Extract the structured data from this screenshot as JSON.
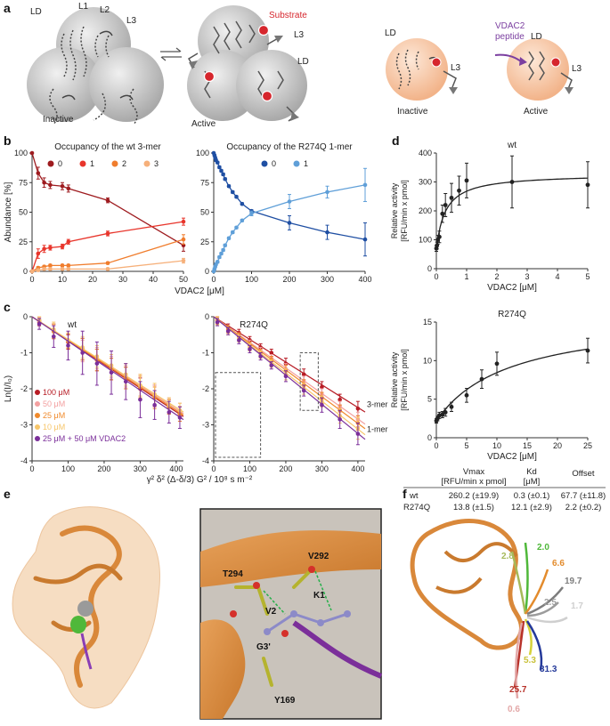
{
  "panel_letters": {
    "a": "a",
    "b": "b",
    "c": "c",
    "d": "d",
    "e": "e",
    "f": "f"
  },
  "panel_a": {
    "labels_inactive": {
      "LD": "LD",
      "L1": "L1",
      "L2": "L2",
      "L3": "L3",
      "state": "Inactive"
    },
    "labels_active": {
      "substrate": "Substrate",
      "L3": "L3",
      "LD": "LD",
      "state": "Active"
    },
    "labels_right": {
      "LD_1": "LD",
      "L3_1": "L3",
      "inactive": "Inactive",
      "peptide": "VDAC2\npeptide",
      "peptide_line1": "VDAC2",
      "peptide_line2": "peptide",
      "LD_2": "LD",
      "L3_2": "L3",
      "active": "Active"
    },
    "colors": {
      "sphere": "#c8c8c8",
      "sphere_orange": "#f6c9a9",
      "substrate": "#d6262d",
      "peptide": "#7b3fa0"
    }
  },
  "panel_e": {
    "residues": {
      "v292": "V292",
      "t294": "T294",
      "k1": "K1",
      "v2": "V2",
      "g3": "G3'",
      "y169": "Y169"
    }
  },
  "panel_f": {
    "labels": [
      "2.0",
      "2.8",
      "6.6",
      "19.7",
      "2.5",
      "1.7",
      "5.3",
      "31.3",
      "25.7",
      "0.6"
    ]
  },
  "table_d": {
    "headers": [
      "Vmax",
      "[RFU/min x pmol]",
      "Kd",
      "[μM]",
      "Offset"
    ],
    "rows": [
      [
        "wt",
        "260.2 (±19.9)",
        "0.3 (±0.1)",
        "67.7 (±11.8)"
      ],
      [
        "R274Q",
        "13.8 (±1.5)",
        "12.1 (±2.9)",
        "2.2 (±0.2)"
      ]
    ]
  },
  "chart_data": [
    {
      "id": "b-left",
      "type": "line",
      "title": "Occupancy of the wt 3-mer",
      "xlabel": "VDAC2 [μM]",
      "ylabel": "Abundance [%]",
      "xlim": [
        0,
        50
      ],
      "ylim": [
        0,
        100
      ],
      "xticks": [
        0,
        10,
        20,
        30,
        40,
        50
      ],
      "yticks": [
        0,
        25,
        50,
        75,
        100
      ],
      "x": [
        0,
        2,
        4,
        6,
        10,
        12,
        25,
        50
      ],
      "legend": [
        "0",
        "1",
        "2",
        "3"
      ],
      "series": [
        {
          "name": "0",
          "color": "#9e1b1f",
          "values": [
            100,
            83,
            75,
            73,
            72,
            70,
            60,
            22
          ],
          "err": [
            0,
            5,
            4,
            3,
            3,
            3,
            2,
            5
          ]
        },
        {
          "name": "1",
          "color": "#e8352b",
          "values": [
            0,
            15,
            19,
            20,
            21,
            25,
            32,
            42
          ],
          "err": [
            0,
            4,
            3,
            2,
            2,
            2,
            2,
            3
          ]
        },
        {
          "name": "2",
          "color": "#f07d2d",
          "values": [
            0,
            3,
            4,
            5,
            5,
            5,
            7,
            27
          ],
          "err": [
            0,
            1,
            1,
            1,
            1,
            1,
            1,
            4
          ]
        },
        {
          "name": "3",
          "color": "#f6b07a",
          "values": [
            0,
            1,
            2,
            2,
            2,
            2,
            2,
            9
          ],
          "err": [
            0,
            1,
            1,
            1,
            1,
            1,
            1,
            2
          ]
        }
      ]
    },
    {
      "id": "b-right",
      "type": "line",
      "title": "Occupancy of the R274Q 1-mer",
      "xlabel": "",
      "ylabel": "",
      "xlim": [
        0,
        400
      ],
      "ylim": [
        0,
        100
      ],
      "xticks": [
        0,
        100,
        200,
        300,
        400
      ],
      "yticks": [
        0,
        25,
        50,
        75,
        100
      ],
      "x": [
        0,
        2,
        4,
        6,
        10,
        15,
        20,
        25,
        30,
        40,
        50,
        60,
        75,
        100,
        200,
        300,
        400
      ],
      "legend": [
        "0",
        "1"
      ],
      "series": [
        {
          "name": "0",
          "color": "#1f4fa3",
          "values": [
            100,
            98,
            96,
            94,
            92,
            88,
            85,
            82,
            78,
            72,
            67,
            63,
            57,
            51,
            41,
            33,
            27
          ],
          "err": [
            0,
            1,
            1,
            1,
            1,
            1,
            1,
            1,
            1,
            1,
            1,
            1,
            1,
            1,
            6,
            6,
            14
          ]
        },
        {
          "name": "1",
          "color": "#5f9fd8",
          "values": [
            0,
            2,
            4,
            6,
            8,
            12,
            15,
            18,
            22,
            28,
            33,
            37,
            43,
            49,
            59,
            67,
            73
          ],
          "err": [
            0,
            1,
            1,
            1,
            1,
            1,
            1,
            1,
            1,
            1,
            1,
            1,
            1,
            2,
            6,
            5,
            14
          ]
        }
      ]
    },
    {
      "id": "c-left",
      "type": "line",
      "title": "wt",
      "xlabel": "",
      "ylabel": "Ln(I/I₀)",
      "xlim": [
        0,
        420
      ],
      "ylim": [
        -4,
        0
      ],
      "xticks": [
        0,
        100,
        200,
        300,
        400
      ],
      "yticks": [
        0,
        -1,
        -2,
        -3,
        -4
      ],
      "legend": [
        "100 μM",
        "50 μM",
        "25 μM",
        "10 μM",
        "25 μM + 50 μM VDAC2"
      ],
      "series": [
        {
          "name": "100 μM",
          "color": "#b71c25",
          "slope": -0.0066,
          "x": [
            20,
            60,
            100,
            140,
            180,
            220,
            260,
            300,
            340,
            380,
            410
          ],
          "y": [
            -0.15,
            -0.4,
            -0.7,
            -0.9,
            -1.2,
            -1.45,
            -1.7,
            -2.0,
            -2.2,
            -2.5,
            -2.7
          ],
          "err": [
            0.1,
            0.2,
            0.2,
            0.3,
            0.3,
            0.3,
            0.3,
            0.3,
            0.3,
            0.2,
            0.2
          ]
        },
        {
          "name": "50 μM",
          "color": "#f3a0a0",
          "slope": -0.0064,
          "x": [
            20,
            60,
            100,
            140,
            180,
            220,
            260,
            300,
            340,
            380,
            410
          ],
          "y": [
            -0.12,
            -0.42,
            -0.65,
            -0.95,
            -1.15,
            -1.4,
            -1.65,
            -1.9,
            -2.2,
            -2.45,
            -2.6
          ],
          "err": [
            0.1,
            0.2,
            0.2,
            0.3,
            0.3,
            0.3,
            0.3,
            0.3,
            0.3,
            0.2,
            0.2
          ]
        },
        {
          "name": "25 μM",
          "color": "#f08a2c",
          "slope": -0.0065,
          "x": [
            20,
            60,
            100,
            140,
            180,
            220,
            260,
            300,
            340,
            380,
            410
          ],
          "y": [
            -0.1,
            -0.4,
            -0.68,
            -0.9,
            -1.2,
            -1.45,
            -1.7,
            -1.95,
            -2.25,
            -2.5,
            -2.7
          ],
          "err": [
            0.1,
            0.2,
            0.2,
            0.3,
            0.3,
            0.3,
            0.3,
            0.3,
            0.3,
            0.2,
            0.2
          ]
        },
        {
          "name": "10 μM",
          "color": "#f7c66a",
          "slope": -0.0063,
          "x": [
            20,
            60,
            100,
            140,
            180,
            220,
            260,
            300,
            340,
            380,
            410
          ],
          "y": [
            -0.1,
            -0.35,
            -0.65,
            -0.85,
            -1.1,
            -1.35,
            -1.6,
            -1.9,
            -2.15,
            -2.45,
            -2.6
          ],
          "err": [
            0.1,
            0.2,
            0.2,
            0.3,
            0.3,
            0.3,
            0.3,
            0.3,
            0.3,
            0.2,
            0.2
          ]
        },
        {
          "name": "25 μM + 50 μM VDAC2",
          "color": "#7b2f9a",
          "slope": -0.0068,
          "x": [
            20,
            60,
            100,
            140,
            180,
            220,
            260,
            300,
            340,
            380,
            410
          ],
          "y": [
            -0.2,
            -0.55,
            -0.8,
            -1.0,
            -1.3,
            -1.55,
            -1.8,
            -2.3,
            -2.45,
            -2.65,
            -2.8
          ],
          "err": [
            0.15,
            0.3,
            0.4,
            0.6,
            0.6,
            0.6,
            0.5,
            0.5,
            0.4,
            0.3,
            0.3
          ]
        }
      ]
    },
    {
      "id": "c-right",
      "type": "line",
      "title": "R274Q",
      "xlabel": "γ² δ² (Δ-δ/3) G² / 10⁸ s m⁻²",
      "ylabel": "",
      "xlim": [
        0,
        420
      ],
      "ylim": [
        -4,
        0
      ],
      "xticks": [
        0,
        100,
        200,
        300,
        400
      ],
      "yticks": [
        0,
        -1,
        -2,
        -3,
        -4
      ],
      "annotations": [
        "3-mer",
        "1-mer"
      ],
      "series": [
        {
          "name": "100 μM",
          "color": "#b71c25",
          "slope": -0.0063,
          "x": [
            10,
            40,
            70,
            100,
            130,
            160,
            200,
            250,
            300,
            350,
            400
          ],
          "y": [
            -0.1,
            -0.3,
            -0.45,
            -0.65,
            -0.85,
            -1.0,
            -1.3,
            -1.6,
            -1.95,
            -2.3,
            -2.55
          ],
          "err": [
            0.1,
            0.1,
            0.1,
            0.1,
            0.1,
            0.1,
            0.15,
            0.15,
            0.15,
            0.15,
            0.2
          ]
        },
        {
          "name": "50 μM",
          "color": "#f3a0a0",
          "slope": -0.0071,
          "x": [
            10,
            40,
            70,
            100,
            130,
            160,
            200,
            250,
            300,
            350,
            400
          ],
          "y": [
            -0.1,
            -0.35,
            -0.55,
            -0.75,
            -0.95,
            -1.15,
            -1.45,
            -1.8,
            -2.15,
            -2.5,
            -2.85
          ],
          "err": [
            0.1,
            0.1,
            0.1,
            0.1,
            0.1,
            0.1,
            0.15,
            0.15,
            0.15,
            0.15,
            0.2
          ]
        },
        {
          "name": "25 μM",
          "color": "#f08a2c",
          "slope": -0.0074,
          "x": [
            10,
            40,
            70,
            100,
            130,
            160,
            200,
            250,
            300,
            350,
            400
          ],
          "y": [
            -0.1,
            -0.35,
            -0.55,
            -0.8,
            -1.0,
            -1.2,
            -1.5,
            -1.9,
            -2.25,
            -2.6,
            -2.95
          ],
          "err": [
            0.1,
            0.1,
            0.1,
            0.1,
            0.1,
            0.1,
            0.15,
            0.15,
            0.15,
            0.15,
            0.2
          ]
        },
        {
          "name": "10 μM",
          "color": "#f7c66a",
          "slope": -0.0078,
          "x": [
            10,
            40,
            70,
            100,
            130,
            160,
            200,
            250,
            300,
            350,
            400
          ],
          "y": [
            -0.12,
            -0.4,
            -0.6,
            -0.85,
            -1.05,
            -1.3,
            -1.6,
            -2.0,
            -2.35,
            -2.75,
            -3.1
          ],
          "err": [
            0.1,
            0.1,
            0.1,
            0.1,
            0.1,
            0.1,
            0.15,
            0.15,
            0.15,
            0.2,
            0.3
          ]
        },
        {
          "name": "25 μM + 50 μM VDAC2",
          "color": "#7b2f9a",
          "slope": -0.0081,
          "x": [
            10,
            40,
            70,
            100,
            130,
            160,
            200,
            250,
            300,
            350,
            400
          ],
          "y": [
            -0.15,
            -0.4,
            -0.65,
            -0.9,
            -1.1,
            -1.35,
            -1.65,
            -2.05,
            -2.45,
            -2.85,
            -3.25
          ],
          "err": [
            0.1,
            0.1,
            0.1,
            0.1,
            0.1,
            0.1,
            0.15,
            0.15,
            0.2,
            0.25,
            0.3
          ]
        }
      ]
    },
    {
      "id": "d-top",
      "type": "scatter",
      "title": "wt",
      "xlabel": "VDAC2 [μM]",
      "ylabel": "Relative activity\n[RFU/min x pmol]",
      "ylabel_line1": "Relative activity",
      "ylabel_line2": "[RFU/min x pmol]",
      "xlim": [
        0,
        5
      ],
      "ylim": [
        0,
        400
      ],
      "xticks": [
        0,
        1,
        2,
        3,
        4,
        5
      ],
      "yticks": [
        0,
        100,
        200,
        300,
        400
      ],
      "fit": {
        "vmax": 260.2,
        "kd": 0.3,
        "offset": 67.7
      },
      "x": [
        0,
        0.02,
        0.05,
        0.1,
        0.2,
        0.3,
        0.5,
        0.75,
        1.0,
        2.5,
        5.0
      ],
      "y": [
        70,
        80,
        100,
        110,
        190,
        220,
        245,
        270,
        305,
        300,
        290
      ],
      "err": [
        10,
        12,
        15,
        20,
        30,
        40,
        50,
        50,
        60,
        90,
        80
      ]
    },
    {
      "id": "d-bottom",
      "type": "scatter",
      "title": "R274Q",
      "xlabel": "VDAC2 [μM]",
      "ylabel": "Relative activity\n[RFU/min x pmol]",
      "ylabel_line1": "Relative activity",
      "ylabel_line2": "[RFU/min x pmol]",
      "xlim": [
        0,
        25
      ],
      "ylim": [
        0,
        15
      ],
      "xticks": [
        0,
        5,
        10,
        15,
        20,
        25
      ],
      "yticks": [
        0,
        5,
        10,
        15
      ],
      "fit": {
        "vmax": 13.8,
        "kd": 12.1,
        "offset": 2.2
      },
      "x": [
        0,
        0.2,
        0.5,
        1,
        1.5,
        2.5,
        5,
        7.5,
        10,
        25
      ],
      "y": [
        2.2,
        2.5,
        2.9,
        3.0,
        3.3,
        4.0,
        5.5,
        7.6,
        9.6,
        11.3
      ],
      "err": [
        0.3,
        0.3,
        0.4,
        0.4,
        0.5,
        0.6,
        0.9,
        1.2,
        1.5,
        1.6
      ]
    }
  ]
}
